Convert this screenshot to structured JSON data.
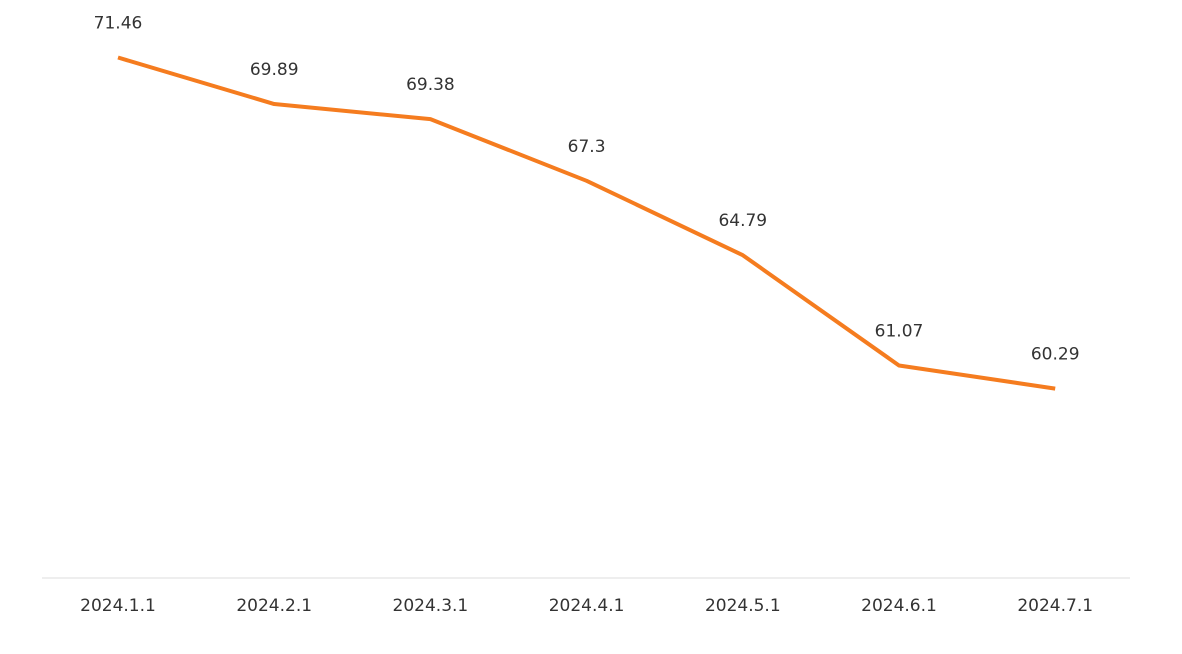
{
  "chart_data": {
    "type": "line",
    "categories": [
      "2024.1.1",
      "2024.2.1",
      "2024.3.1",
      "2024.4.1",
      "2024.5.1",
      "2024.6.1",
      "2024.7.1"
    ],
    "values": [
      71.46,
      69.89,
      69.38,
      67.3,
      64.79,
      61.07,
      60.29
    ],
    "color": "#f57c1f",
    "ylim": [
      53.9,
      73.4
    ]
  }
}
